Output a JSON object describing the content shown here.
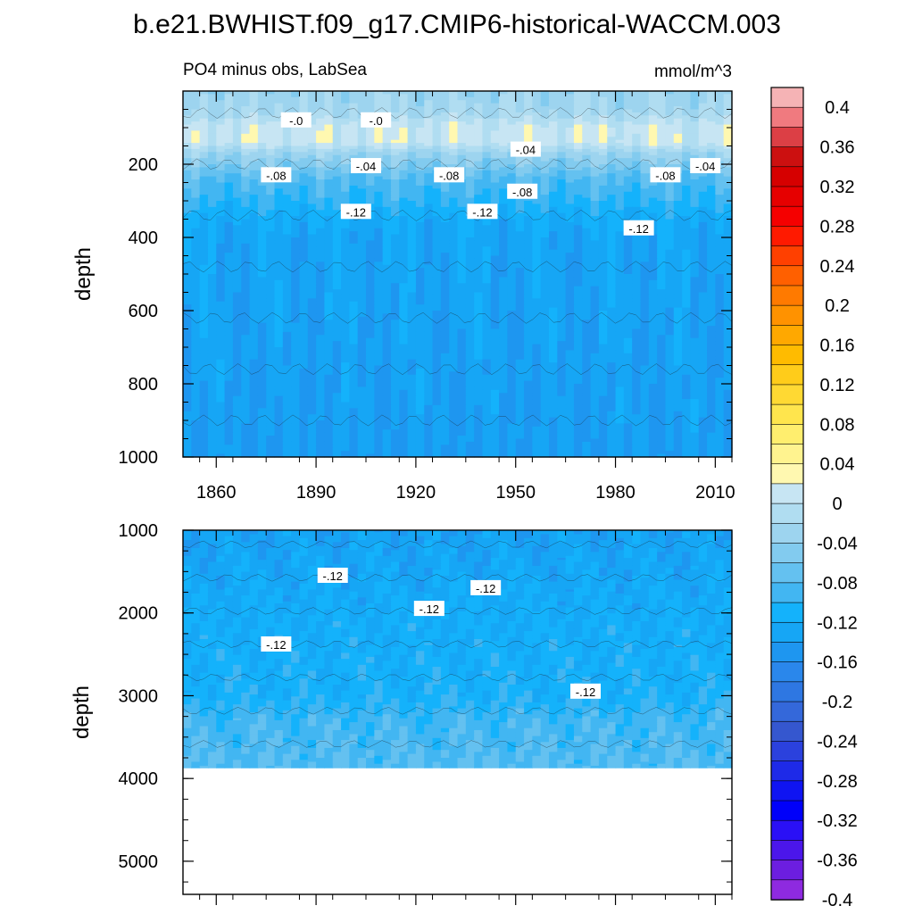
{
  "figure_title": "b.e21.BWHIST.f09_g17.CMIP6-historical-WACCM.003",
  "chart_data": [
    {
      "type": "heatmap",
      "subtitle_left": "PO4 minus obs, LabSea",
      "subtitle_right": "mmol/m^3",
      "ylabel": "depth",
      "xlim": [
        1850,
        2015
      ],
      "ylim": [
        0,
        1000
      ],
      "y_inverted": true,
      "xticks": [
        1860,
        1890,
        1920,
        1950,
        1980,
        2010
      ],
      "xtick_labels": [
        "1860",
        "1890",
        "1920",
        "1950",
        "1980",
        "2010"
      ],
      "yticks": [
        200,
        400,
        600,
        800,
        1000
      ],
      "ytick_labels": [
        "200",
        "400",
        "600",
        "800",
        "1000"
      ],
      "contour_labels": [
        {
          "text": "-.0",
          "x": 1884,
          "y": 80
        },
        {
          "text": "-.0",
          "x": 1908,
          "y": 80
        },
        {
          "text": "-.04",
          "x": 1953,
          "y": 160
        },
        {
          "text": "-.04",
          "x": 1905,
          "y": 205
        },
        {
          "text": "-.04",
          "x": 2007,
          "y": 205
        },
        {
          "text": "-.08",
          "x": 1878,
          "y": 230
        },
        {
          "text": "-.08",
          "x": 1930,
          "y": 230
        },
        {
          "text": "-.08",
          "x": 1952,
          "y": 275
        },
        {
          "text": "-.08",
          "x": 1995,
          "y": 230
        },
        {
          "text": "-.12",
          "x": 1902,
          "y": 330
        },
        {
          "text": "-.12",
          "x": 1940,
          "y": 330
        },
        {
          "text": "-.12",
          "x": 1987,
          "y": 375
        }
      ],
      "depth_profile": [
        {
          "depth": 0,
          "value": -0.03
        },
        {
          "depth": 60,
          "value": -0.02
        },
        {
          "depth": 100,
          "value": 0.01
        },
        {
          "depth": 140,
          "value": 0.01
        },
        {
          "depth": 170,
          "value": -0.03
        },
        {
          "depth": 200,
          "value": -0.05
        },
        {
          "depth": 240,
          "value": -0.08
        },
        {
          "depth": 300,
          "value": -0.1
        },
        {
          "depth": 350,
          "value": -0.12
        },
        {
          "depth": 400,
          "value": -0.13
        },
        {
          "depth": 1000,
          "value": -0.14
        }
      ]
    },
    {
      "type": "heatmap",
      "ylabel": "depth",
      "xlim": [
        1850,
        2015
      ],
      "ylim": [
        1000,
        5400
      ],
      "y_inverted": true,
      "data_bottom_depth": 3870,
      "yticks": [
        1000,
        2000,
        3000,
        4000,
        5000
      ],
      "ytick_labels": [
        "1000",
        "2000",
        "3000",
        "4000",
        "5000"
      ],
      "contour_labels": [
        {
          "text": "-.12",
          "x": 1895,
          "y": 1550
        },
        {
          "text": "-.12",
          "x": 1924,
          "y": 1950
        },
        {
          "text": "-.12",
          "x": 1941,
          "y": 1700
        },
        {
          "text": "-.12",
          "x": 1878,
          "y": 2380
        },
        {
          "text": "-.12",
          "x": 1971,
          "y": 2950
        }
      ],
      "depth_profile": [
        {
          "depth": 1000,
          "value": -0.135
        },
        {
          "depth": 2000,
          "value": -0.12
        },
        {
          "depth": 3000,
          "value": -0.11
        },
        {
          "depth": 3300,
          "value": -0.09
        },
        {
          "depth": 3870,
          "value": -0.08
        }
      ]
    }
  ],
  "colorbar": {
    "labels": [
      "0.4",
      "0.36",
      "0.32",
      "0.28",
      "0.24",
      "0.2",
      "0.16",
      "0.12",
      "0.08",
      "0.04",
      "0",
      "-0.04",
      "-0.08",
      "-0.12",
      "-0.16",
      "-0.2",
      "-0.24",
      "-0.28",
      "-0.32",
      "-0.36",
      "-0.4"
    ],
    "colors": [
      "#f5b3b5",
      "#f07a7f",
      "#dc3f45",
      "#cc1010",
      "#d60000",
      "#e60000",
      "#f50000",
      "#ff1a00",
      "#ff4000",
      "#ff6000",
      "#ff7a00",
      "#ff9200",
      "#ffa800",
      "#ffbb00",
      "#ffcc1a",
      "#ffd933",
      "#ffe54d",
      "#ffee6e",
      "#fff38f",
      "#fff8b0",
      "#c7e5f3",
      "#b0ddf1",
      "#9dd4ef",
      "#82cbef",
      "#64c1f0",
      "#42b6f2",
      "#14b2fb",
      "#16a6f5",
      "#1e96f0",
      "#2a87eb",
      "#2e77e2",
      "#3468da",
      "#3557cf",
      "#2b41dd",
      "#1e2ae8",
      "#0f14f2",
      "#0000fa",
      "#2a10f6",
      "#4b16ea",
      "#6c1ee0",
      "#8e2ae0"
    ]
  }
}
